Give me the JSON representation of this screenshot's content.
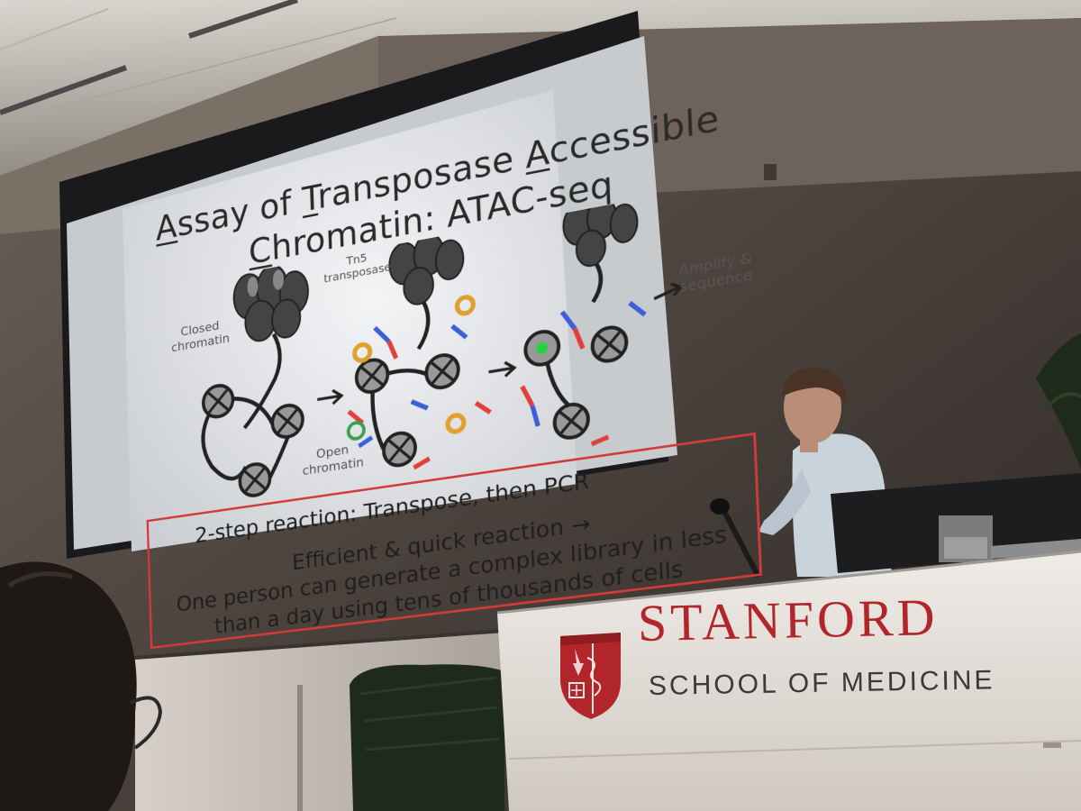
{
  "slide": {
    "title_line1": [
      "A",
      "ssay of ",
      "T",
      "ransposase ",
      "A",
      "ccessible"
    ],
    "title_line2": [
      "C",
      "hromatin: ATAC-seq"
    ],
    "labels": {
      "closed": "Closed\nchromatin",
      "tn5": "Tn5\ntransposase",
      "open": "Open\nchromatin",
      "amplify": "Amplify &\nsequence"
    },
    "reaction": "2-step reaction:  Transpose, then PCR",
    "box_line1": "Efficient & quick reaction →",
    "box_line2": "One person can generate a complex library in less",
    "box_line3": "than a day using tens of thousands of cells"
  },
  "podium": {
    "brand": "STANFORD",
    "subtitle": "SCHOOL OF MEDICINE"
  },
  "colors": {
    "stanford_red": "#b1252b",
    "slide_bg": "#eceef0",
    "box_border": "#d33a3a",
    "adapter_blue": "#3b5fd8",
    "adapter_red": "#e0403a"
  }
}
